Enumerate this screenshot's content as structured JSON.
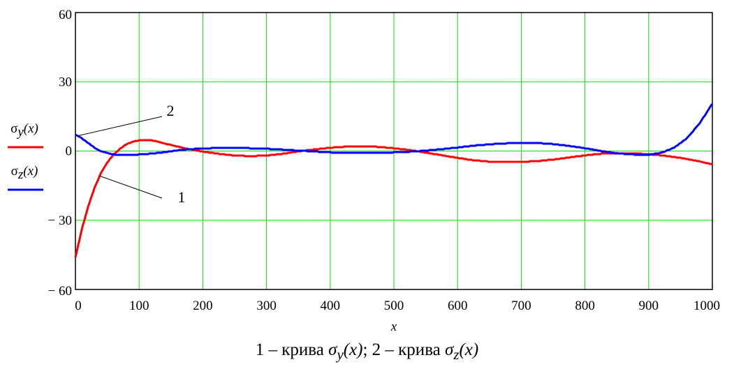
{
  "chart_data": {
    "type": "line",
    "xlabel": "x",
    "xlim": [
      0,
      1000
    ],
    "ylim": [
      -60,
      60
    ],
    "xticks": [
      0,
      100,
      200,
      300,
      400,
      500,
      600,
      700,
      800,
      900,
      1000
    ],
    "yticks": [
      -60,
      -30,
      0,
      30,
      60
    ],
    "ytick_labels": [
      "− 60",
      "− 30",
      "0",
      "30",
      "60"
    ],
    "grid": true,
    "legend_position": "left",
    "series": [
      {
        "name": "σy(x)",
        "color": "#ff0000",
        "x": [
          0,
          10,
          20,
          30,
          40,
          50,
          60,
          70,
          80,
          90,
          100,
          110,
          120,
          130,
          150,
          175,
          200,
          225,
          250,
          275,
          300,
          325,
          350,
          375,
          400,
          425,
          450,
          475,
          500,
          525,
          550,
          575,
          600,
          625,
          650,
          675,
          700,
          725,
          750,
          775,
          800,
          825,
          850,
          875,
          900,
          925,
          950,
          975,
          1000
        ],
        "values": [
          -46,
          -34,
          -24,
          -16,
          -9.5,
          -5,
          -1.5,
          1,
          3,
          4,
          4.6,
          4.8,
          4.6,
          4,
          2.6,
          1,
          -0.3,
          -1.2,
          -2,
          -2.2,
          -2,
          -1.2,
          -0.2,
          0.7,
          1.4,
          1.9,
          2,
          1.8,
          1.2,
          0.4,
          -0.7,
          -1.8,
          -3,
          -4,
          -4.6,
          -4.8,
          -4.7,
          -4.4,
          -3.7,
          -2.8,
          -1.9,
          -1.2,
          -0.9,
          -1,
          -1.4,
          -2,
          -3,
          -4.2,
          -5.8
        ]
      },
      {
        "name": "σz(x)",
        "color": "#0000ff",
        "x": [
          0,
          10,
          20,
          30,
          40,
          50,
          60,
          70,
          80,
          90,
          100,
          120,
          140,
          160,
          180,
          200,
          225,
          250,
          275,
          300,
          325,
          350,
          375,
          400,
          425,
          450,
          475,
          500,
          525,
          550,
          575,
          600,
          625,
          650,
          675,
          700,
          725,
          750,
          775,
          800,
          825,
          850,
          875,
          900,
          920,
          940,
          960,
          980,
          1000
        ],
        "values": [
          7,
          5.5,
          3.5,
          1.5,
          0,
          -0.8,
          -1.5,
          -1.8,
          -1.8,
          -1.7,
          -1.5,
          -1.1,
          -0.5,
          0.3,
          0.8,
          1.1,
          1.3,
          1.3,
          1.2,
          1,
          0.6,
          0.2,
          -0.2,
          -0.6,
          -0.8,
          -0.9,
          -0.8,
          -0.6,
          -0.3,
          0.2,
          0.8,
          1.5,
          2.3,
          2.9,
          3.3,
          3.6,
          3.5,
          3,
          2.2,
          1.2,
          0,
          -1,
          -1.5,
          -1.6,
          -0.8,
          1.5,
          5.5,
          12,
          20.5
        ]
      }
    ],
    "annotations": [
      {
        "text": "1",
        "series": 0
      },
      {
        "text": "2",
        "series": 1
      }
    ]
  },
  "caption": {
    "prefix": "1 – крива ",
    "sep": "; 2 – крива ",
    "sigma": "σ",
    "sub_y": "y",
    "sub_z": "z",
    "arg": "(x)"
  }
}
